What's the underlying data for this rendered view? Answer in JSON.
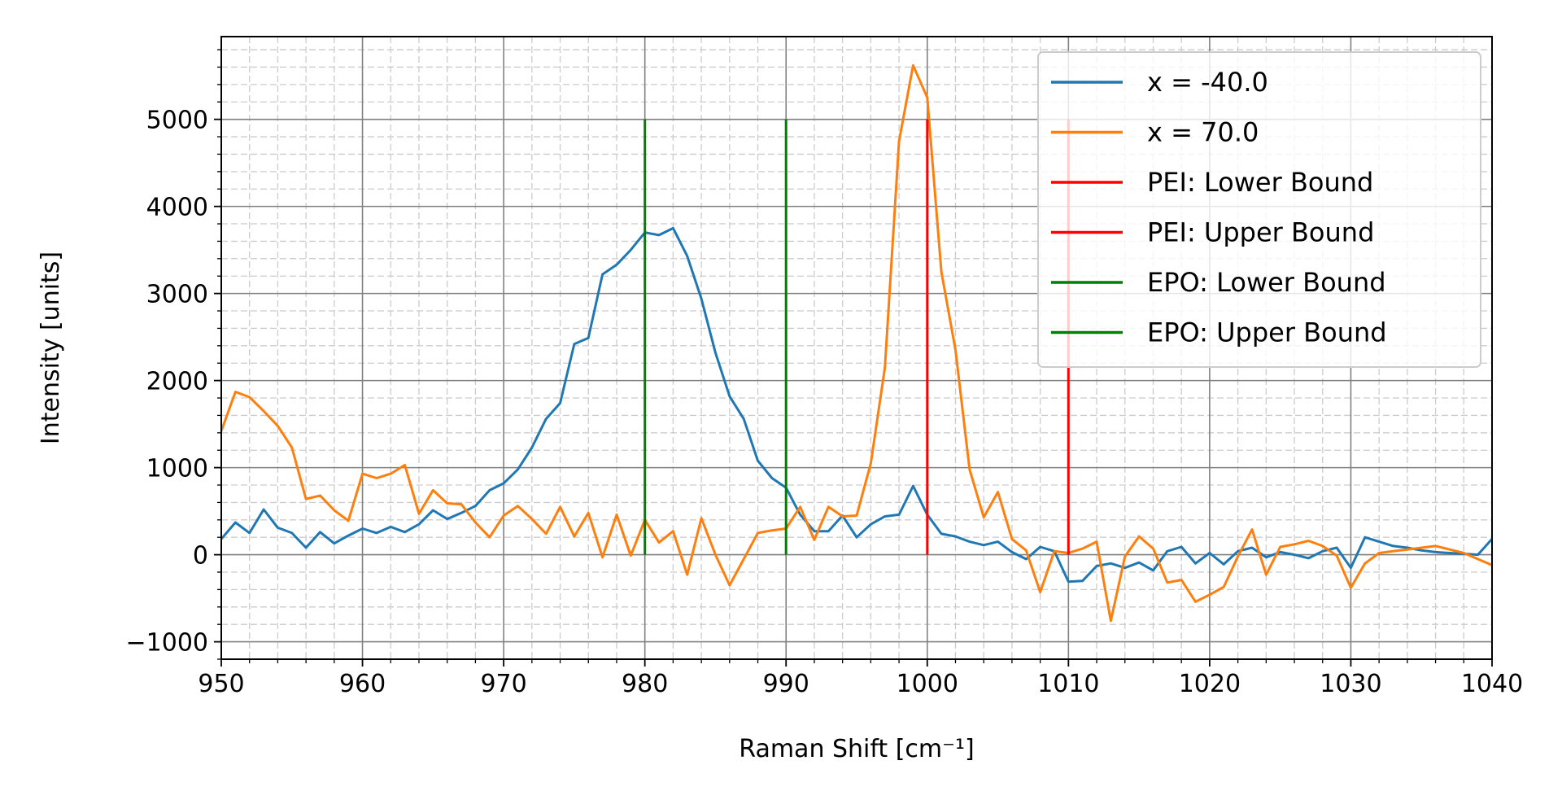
{
  "chart_data": {
    "type": "line",
    "title": "",
    "xlabel": "Raman Shift [cm⁻¹]",
    "ylabel": "Intensity [units]",
    "xlim": [
      950,
      1040
    ],
    "ylim": [
      -1200,
      5950
    ],
    "x_ticks": [
      950,
      960,
      970,
      980,
      990,
      1000,
      1010,
      1020,
      1030,
      1040
    ],
    "x_tick_labels": [
      "950",
      "960",
      "970",
      "980",
      "990",
      "1000",
      "1010",
      "1020",
      "1030",
      "1040"
    ],
    "y_ticks": [
      -1000,
      0,
      1000,
      2000,
      3000,
      4000,
      5000
    ],
    "y_tick_labels": [
      "−1000",
      "0",
      "1000",
      "2000",
      "3000",
      "4000",
      "5000"
    ],
    "grid": true,
    "minor_grid": true,
    "legend_position": "top-right",
    "series": [
      {
        "name": "x = -40.0",
        "color": "#1f77b4",
        "x": [
          950,
          951,
          952,
          953,
          954,
          955,
          956,
          957,
          958,
          959,
          960,
          961,
          962,
          963,
          964,
          965,
          966,
          967,
          968,
          969,
          970,
          971,
          972,
          973,
          974,
          975,
          976,
          977,
          978,
          979,
          980,
          981,
          982,
          983,
          984,
          985,
          986,
          987,
          988,
          989,
          990,
          991,
          992,
          993,
          994,
          995,
          996,
          997,
          998,
          999,
          1000,
          1001,
          1002,
          1003,
          1004,
          1005,
          1006,
          1007,
          1008,
          1009,
          1010,
          1011,
          1012,
          1013,
          1014,
          1015,
          1016,
          1017,
          1018,
          1019,
          1020,
          1021,
          1022,
          1023,
          1024,
          1025,
          1026,
          1027,
          1028,
          1029,
          1030,
          1031,
          1032,
          1033,
          1034,
          1035,
          1036,
          1037,
          1038,
          1039,
          1040
        ],
        "y": [
          180,
          370,
          250,
          520,
          310,
          250,
          80,
          260,
          130,
          220,
          300,
          250,
          320,
          260,
          350,
          510,
          410,
          480,
          560,
          740,
          820,
          980,
          1230,
          1560,
          1740,
          2420,
          2490,
          3220,
          3330,
          3500,
          3700,
          3670,
          3750,
          3430,
          2940,
          2320,
          1820,
          1560,
          1080,
          880,
          770,
          460,
          270,
          270,
          450,
          200,
          350,
          440,
          460,
          790,
          460,
          240,
          210,
          150,
          110,
          150,
          30,
          -50,
          90,
          40,
          -310,
          -300,
          -130,
          -100,
          -150,
          -90,
          -180,
          40,
          90,
          -100,
          20,
          -110,
          40,
          80,
          -30,
          30,
          0,
          -40,
          40,
          80,
          -150,
          200,
          150,
          100,
          80,
          50,
          30,
          20,
          10,
          0,
          180
        ]
      },
      {
        "name": "x = 70.0",
        "color": "#ff7f0e",
        "x": [
          950,
          951,
          952,
          953,
          954,
          955,
          956,
          957,
          958,
          959,
          960,
          961,
          962,
          963,
          964,
          965,
          966,
          967,
          968,
          969,
          970,
          971,
          972,
          973,
          974,
          975,
          976,
          977,
          978,
          979,
          980,
          981,
          982,
          983,
          984,
          985,
          986,
          987,
          988,
          989,
          990,
          991,
          992,
          993,
          994,
          995,
          996,
          997,
          998,
          999,
          1000,
          1001,
          1002,
          1003,
          1004,
          1005,
          1006,
          1007,
          1008,
          1009,
          1010,
          1011,
          1012,
          1013,
          1014,
          1015,
          1016,
          1017,
          1018,
          1019,
          1020,
          1021,
          1022,
          1023,
          1024,
          1025,
          1026,
          1027,
          1028,
          1029,
          1030,
          1031,
          1032,
          1033,
          1034,
          1035,
          1036,
          1037,
          1038,
          1039,
          1040
        ],
        "y": [
          1420,
          1870,
          1810,
          1650,
          1480,
          1230,
          640,
          680,
          510,
          390,
          930,
          880,
          930,
          1030,
          470,
          740,
          590,
          580,
          370,
          200,
          450,
          560,
          410,
          240,
          550,
          210,
          480,
          -30,
          460,
          -10,
          400,
          140,
          270,
          -230,
          420,
          0,
          -350,
          -50,
          250,
          280,
          300,
          550,
          170,
          550,
          440,
          450,
          1050,
          2150,
          4750,
          5620,
          5250,
          3250,
          2350,
          980,
          430,
          720,
          180,
          50,
          -430,
          40,
          20,
          70,
          150,
          -760,
          -20,
          210,
          70,
          -320,
          -290,
          -540,
          -460,
          -370,
          -20,
          290,
          -230,
          90,
          120,
          160,
          100,
          -10,
          -380,
          -100,
          20,
          40,
          60,
          80,
          100,
          60,
          20,
          -50,
          -120
        ]
      },
      {
        "name": "PEI: Lower Bound",
        "color": "#ff0000",
        "x": [
          1000,
          1000
        ],
        "y": [
          0,
          5000
        ]
      },
      {
        "name": "PEI: Upper Bound",
        "color": "#ff0000",
        "x": [
          1010,
          1010
        ],
        "y": [
          0,
          5000
        ]
      },
      {
        "name": "EPO: Lower Bound",
        "color": "#008000",
        "x": [
          980,
          980
        ],
        "y": [
          0,
          5000
        ]
      },
      {
        "name": "EPO: Upper Bound",
        "color": "#008000",
        "x": [
          990,
          990
        ],
        "y": [
          0,
          5000
        ]
      }
    ]
  }
}
